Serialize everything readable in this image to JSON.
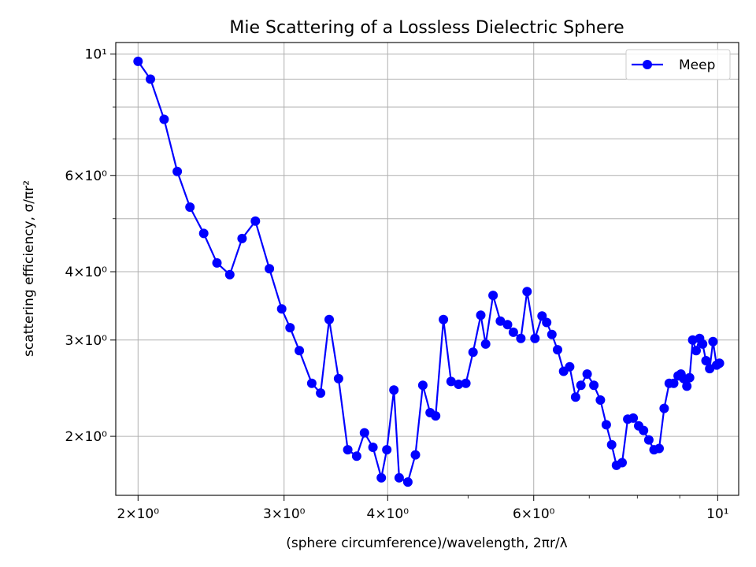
{
  "chart_data": {
    "type": "line",
    "title": "Mie Scattering of a Lossless Dielectric Sphere",
    "xlabel": "(sphere circumference)/wavelength, 2πr/λ",
    "ylabel": "scattering efficiency, σ/πr²",
    "xscale": "log",
    "yscale": "log",
    "xlim": [
      1.88,
      10.6
    ],
    "ylim": [
      1.56,
      10.5
    ],
    "grid": true,
    "legend": "top-right",
    "x_major_ticks": [
      {
        "value": 2,
        "label": "2×10⁰"
      },
      {
        "value": 3,
        "label": "3×10⁰"
      },
      {
        "value": 4,
        "label": "4×10⁰"
      },
      {
        "value": 6,
        "label": "6×10⁰"
      },
      {
        "value": 10,
        "label": "10¹"
      }
    ],
    "x_minor_ticks": [
      5,
      7,
      8,
      9
    ],
    "y_major_ticks": [
      {
        "value": 2,
        "label": "2×10⁰"
      },
      {
        "value": 3,
        "label": "3×10⁰"
      },
      {
        "value": 4,
        "label": "4×10⁰"
      },
      {
        "value": 6,
        "label": "6×10⁰"
      },
      {
        "value": 10,
        "label": "10¹"
      }
    ],
    "y_minor_ticks": [
      5,
      7,
      8,
      9
    ],
    "series": [
      {
        "name": "Meep",
        "color": "#0000ff",
        "marker": "circle",
        "x": [
          2.0,
          2.07,
          2.15,
          2.23,
          2.31,
          2.4,
          2.49,
          2.58,
          2.67,
          2.77,
          2.88,
          2.98,
          3.05,
          3.13,
          3.24,
          3.32,
          3.4,
          3.49,
          3.58,
          3.67,
          3.75,
          3.84,
          3.93,
          3.99,
          4.07,
          4.13,
          4.23,
          4.32,
          4.41,
          4.5,
          4.57,
          4.67,
          4.77,
          4.87,
          4.97,
          5.07,
          5.18,
          5.25,
          5.36,
          5.47,
          5.58,
          5.67,
          5.79,
          5.89,
          6.02,
          6.14,
          6.22,
          6.31,
          6.41,
          6.52,
          6.63,
          6.74,
          6.84,
          6.96,
          7.09,
          7.22,
          7.34,
          7.45,
          7.55,
          7.67,
          7.79,
          7.91,
          8.03,
          8.14,
          8.26,
          8.38,
          8.5,
          8.62,
          8.74,
          8.85,
          8.96,
          9.03,
          9.1,
          9.18,
          9.25,
          9.33,
          9.42,
          9.51,
          9.59,
          9.68,
          9.78,
          9.87,
          9.97,
          10.05
        ],
        "y": [
          9.7,
          9.0,
          7.6,
          6.1,
          5.25,
          4.7,
          4.15,
          3.95,
          4.6,
          4.95,
          4.05,
          3.42,
          3.16,
          2.87,
          2.5,
          2.4,
          3.27,
          2.55,
          1.89,
          1.84,
          2.03,
          1.91,
          1.68,
          1.89,
          2.43,
          1.68,
          1.65,
          1.85,
          2.48,
          2.21,
          2.18,
          3.27,
          2.52,
          2.49,
          2.5,
          2.85,
          3.33,
          2.95,
          3.62,
          3.25,
          3.2,
          3.1,
          3.02,
          3.68,
          3.02,
          3.32,
          3.23,
          3.07,
          2.88,
          2.63,
          2.68,
          2.36,
          2.48,
          2.6,
          2.48,
          2.33,
          2.1,
          1.93,
          1.77,
          1.79,
          2.15,
          2.16,
          2.09,
          2.05,
          1.97,
          1.89,
          1.9,
          2.25,
          2.5,
          2.5,
          2.58,
          2.6,
          2.55,
          2.47,
          2.56,
          3.0,
          2.87,
          3.02,
          2.95,
          2.75,
          2.66,
          2.98,
          2.7,
          2.72
        ]
      }
    ]
  }
}
